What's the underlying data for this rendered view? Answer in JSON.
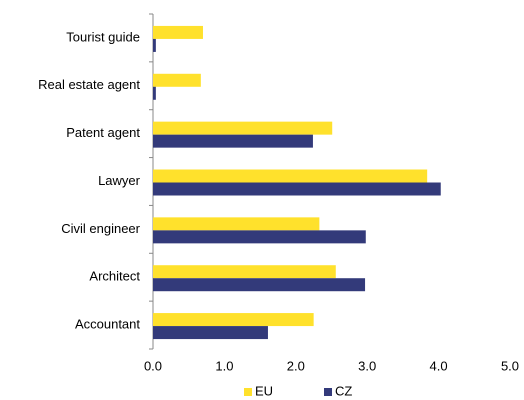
{
  "chart_data": {
    "type": "hbar",
    "categories": [
      "Tourist guide",
      "Real estate agent",
      "Patent agent",
      "Lawyer",
      "Civil engineer",
      "Architect",
      "Accountant"
    ],
    "series": [
      {
        "name": "EU",
        "color": "#ffe12c",
        "values": [
          0.7,
          0.67,
          2.51,
          3.84,
          2.33,
          2.56,
          2.25
        ]
      },
      {
        "name": "CZ",
        "color": "#333a7a",
        "values": [
          0.04,
          0.04,
          2.24,
          4.03,
          2.98,
          2.97,
          1.61
        ]
      }
    ],
    "xlim": [
      0,
      5
    ],
    "xticks": [
      {
        "value": 0,
        "label": "0.0"
      },
      {
        "value": 1,
        "label": "1.0"
      },
      {
        "value": 2,
        "label": "2.0"
      },
      {
        "value": 3,
        "label": "3.0"
      },
      {
        "value": 4,
        "label": "4.0"
      },
      {
        "value": 5,
        "label": "5.0"
      }
    ],
    "grid": false,
    "legend": "bottom"
  }
}
